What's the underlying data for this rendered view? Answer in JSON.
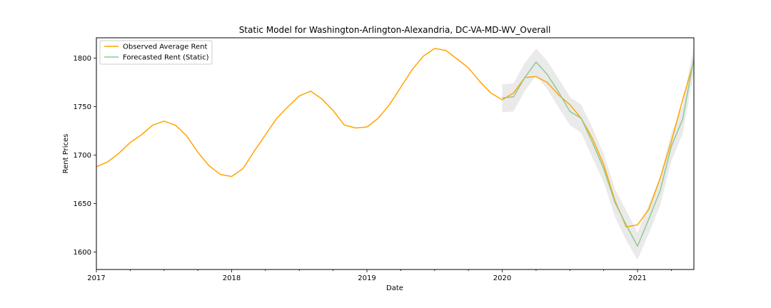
{
  "chart_data": {
    "type": "line",
    "title": "Static Model for Washington-Arlington-Alexandria, DC-VA-MD-WV_Overall",
    "xlabel": "Date",
    "ylabel": "Rent Prices",
    "xlim": [
      "2017-01",
      "2021-06"
    ],
    "ylim": [
      1582,
      1821
    ],
    "x_ticks": [
      {
        "date": "2017-01",
        "label": "2017"
      },
      {
        "date": "2018-01",
        "label": "2018"
      },
      {
        "date": "2019-01",
        "label": "2019"
      },
      {
        "date": "2020-01",
        "label": "2020"
      },
      {
        "date": "2021-01",
        "label": "2021"
      }
    ],
    "y_ticks": [
      1600,
      1650,
      1700,
      1750,
      1800
    ],
    "legend_position": "top-left",
    "grid": false,
    "series": [
      {
        "name": "Observed Average Rent",
        "color": "#FFA500",
        "points": [
          [
            "2017-01",
            1688
          ],
          [
            "2017-02",
            1693
          ],
          [
            "2017-03",
            1702
          ],
          [
            "2017-04",
            1713
          ],
          [
            "2017-05",
            1721
          ],
          [
            "2017-06",
            1731
          ],
          [
            "2017-07",
            1735
          ],
          [
            "2017-08",
            1731
          ],
          [
            "2017-09",
            1720
          ],
          [
            "2017-10",
            1703
          ],
          [
            "2017-11",
            1689
          ],
          [
            "2017-12",
            1680
          ],
          [
            "2018-01",
            1678
          ],
          [
            "2018-02",
            1686
          ],
          [
            "2018-03",
            1704
          ],
          [
            "2018-04",
            1721
          ],
          [
            "2018-05",
            1738
          ],
          [
            "2018-06",
            1750
          ],
          [
            "2018-07",
            1761
          ],
          [
            "2018-08",
            1766
          ],
          [
            "2018-09",
            1758
          ],
          [
            "2018-10",
            1746
          ],
          [
            "2018-11",
            1731
          ],
          [
            "2018-12",
            1728
          ],
          [
            "2019-01",
            1729
          ],
          [
            "2019-02",
            1738
          ],
          [
            "2019-03",
            1752
          ],
          [
            "2019-04",
            1770
          ],
          [
            "2019-05",
            1788
          ],
          [
            "2019-06",
            1802
          ],
          [
            "2019-07",
            1810
          ],
          [
            "2019-08",
            1808
          ],
          [
            "2019-09",
            1799
          ],
          [
            "2019-10",
            1790
          ],
          [
            "2019-11",
            1776
          ],
          [
            "2019-12",
            1764
          ],
          [
            "2020-01",
            1757
          ],
          [
            "2020-02",
            1764
          ],
          [
            "2020-03",
            1780
          ],
          [
            "2020-04",
            1781
          ],
          [
            "2020-05",
            1775
          ],
          [
            "2020-06",
            1762
          ],
          [
            "2020-07",
            1752
          ],
          [
            "2020-08",
            1738
          ],
          [
            "2020-09",
            1717
          ],
          [
            "2020-10",
            1690
          ],
          [
            "2020-11",
            1653
          ],
          [
            "2020-12",
            1626
          ],
          [
            "2021-01",
            1628
          ],
          [
            "2021-02",
            1644
          ],
          [
            "2021-03",
            1676
          ],
          [
            "2021-04",
            1714
          ],
          [
            "2021-05",
            1757
          ],
          [
            "2021-06",
            1797
          ]
        ]
      },
      {
        "name": "Forecasted Rent (Static)",
        "color": "#8fca8f",
        "points": [
          [
            "2020-01",
            1759
          ],
          [
            "2020-02",
            1760
          ],
          [
            "2020-03",
            1780
          ],
          [
            "2020-04",
            1796
          ],
          [
            "2020-05",
            1783
          ],
          [
            "2020-06",
            1765
          ],
          [
            "2020-07",
            1745
          ],
          [
            "2020-08",
            1738
          ],
          [
            "2020-09",
            1713
          ],
          [
            "2020-10",
            1686
          ],
          [
            "2020-11",
            1651
          ],
          [
            "2020-12",
            1628
          ],
          [
            "2021-01",
            1606
          ],
          [
            "2021-02",
            1634
          ],
          [
            "2021-03",
            1663
          ],
          [
            "2021-04",
            1709
          ],
          [
            "2021-05",
            1737
          ],
          [
            "2021-06",
            1800
          ]
        ]
      }
    ],
    "confidence_band": {
      "color": "#d9d9d9",
      "lower": [
        1744,
        1745,
        1766,
        1782,
        1768,
        1749,
        1731,
        1723,
        1697,
        1672,
        1636,
        1612,
        1592,
        1619,
        1648,
        1694,
        1722,
        1785
      ],
      "upper": [
        1773,
        1774,
        1795,
        1810,
        1797,
        1779,
        1760,
        1752,
        1728,
        1701,
        1665,
        1643,
        1620,
        1649,
        1677,
        1723,
        1751,
        1814
      ]
    }
  }
}
